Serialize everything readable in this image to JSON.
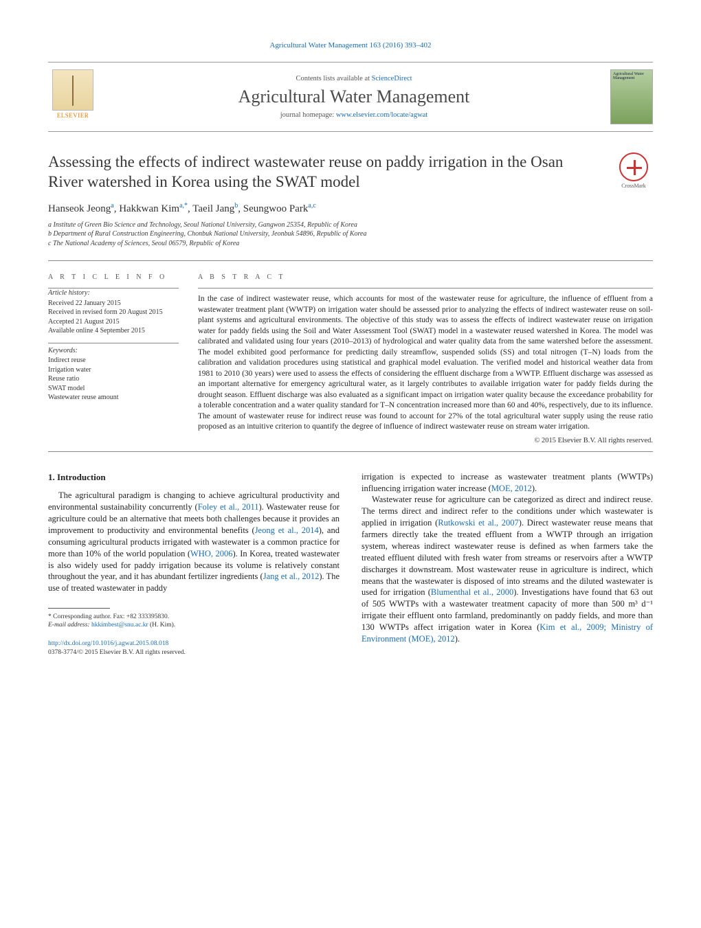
{
  "header_link": "Agricultural Water Management 163 (2016) 393–402",
  "masthead": {
    "contents_prefix": "Contents lists available at ",
    "contents_link": "ScienceDirect",
    "journal": "Agricultural Water Management",
    "homepage_prefix": "journal homepage: ",
    "homepage_link": "www.elsevier.com/locate/agwat",
    "elsevier_label": "ELSEVIER",
    "cover_label": "Agricultural Water Management"
  },
  "title": "Assessing the effects of indirect wastewater reuse on paddy irrigation in the Osan River watershed in Korea using the SWAT model",
  "crossmark": "CrossMark",
  "authors_html": "Hanseok Jeong|a|, Hakkwan Kim|a,*|, Taeil Jang|b|, Seungwoo Park|a,c",
  "authors": [
    {
      "name": "Hanseok Jeong",
      "sup": "a"
    },
    {
      "name": "Hakkwan Kim",
      "sup": "a,*"
    },
    {
      "name": "Taeil Jang",
      "sup": "b"
    },
    {
      "name": "Seungwoo Park",
      "sup": "a,c"
    }
  ],
  "affiliations": [
    "a Institute of Green Bio Science and Technology, Seoul National University, Gangwon 25354, Republic of Korea",
    "b Department of Rural Construction Engineering, Chonbuk National University, Jeonbuk 54896, Republic of Korea",
    "c The National Academy of Sciences, Seoul 06579, Republic of Korea"
  ],
  "article_info": {
    "heading": "A R T I C L E  I N F O",
    "history_head": "Article history:",
    "history": [
      "Received 22 January 2015",
      "Received in revised form 20 August 2015",
      "Accepted 21 August 2015",
      "Available online 4 September 2015"
    ],
    "keywords_head": "Keywords:",
    "keywords": [
      "Indirect reuse",
      "Irrigation water",
      "Reuse ratio",
      "SWAT model",
      "Wastewater reuse amount"
    ]
  },
  "abstract": {
    "heading": "A B S T R A C T",
    "text": "In the case of indirect wastewater reuse, which accounts for most of the wastewater reuse for agriculture, the influence of effluent from a wastewater treatment plant (WWTP) on irrigation water should be assessed prior to analyzing the effects of indirect wastewater reuse on soil-plant systems and agricultural environments. The objective of this study was to assess the effects of indirect wastewater reuse on irrigation water for paddy fields using the Soil and Water Assessment Tool (SWAT) model in a wastewater reused watershed in Korea. The model was calibrated and validated using four years (2010–2013) of hydrological and water quality data from the same watershed before the assessment. The model exhibited good performance for predicting daily streamflow, suspended solids (SS) and total nitrogen (T–N) loads from the calibration and validation procedures using statistical and graphical model evaluation. The verified model and historical weather data from 1981 to 2010 (30 years) were used to assess the effects of considering the effluent discharge from a WWTP. Effluent discharge was assessed as an important alternative for emergency agricultural water, as it largely contributes to available irrigation water for paddy fields during the drought season. Effluent discharge was also evaluated as a significant impact on irrigation water quality because the exceedance probability for a tolerable concentration and a water quality standard for T–N concentration increased more than 60 and 40%, respectively, due to its influence. The amount of wastewater reuse for indirect reuse was found to account for 27% of the total agricultural water supply using the reuse ratio proposed as an intuitive criterion to quantify the degree of influence of indirect wastewater reuse on stream water irrigation.",
    "copyright": "© 2015 Elsevier B.V. All rights reserved."
  },
  "body": {
    "intro_heading": "1.  Introduction",
    "col1_p1a": "The agricultural paradigm is changing to achieve agricultural productivity and environmental sustainability concurrently (",
    "col1_l1": "Foley et al., 2011",
    "col1_p1b": "). Wastewater reuse for agriculture could be an alternative that meets both challenges because it provides an improvement to productivity and environmental benefits (",
    "col1_l2": "Jeong et al., 2014",
    "col1_p1c": "), and consuming agricultural products irrigated with wastewater is a common practice for more than 10% of the world population (",
    "col1_l3": "WHO, 2006",
    "col1_p1d": "). In Korea, treated wastewater is also widely used for paddy irrigation because its volume is relatively constant throughout the year, and it has abundant fertilizer ingredients (",
    "col1_l4": "Jang et al., 2012",
    "col1_p1e": "). The use of treated wastewater in paddy",
    "col2_p1a": "irrigation is expected to increase as wastewater treatment plants (WWTPs) influencing irrigation water increase (",
    "col2_l1": "MOE, 2012",
    "col2_p1b": ").",
    "col2_p2a": "Wastewater reuse for agriculture can be categorized as direct and indirect reuse. The terms direct and indirect refer to the conditions under which wastewater is applied in irrigation (",
    "col2_l2": "Rutkowski et al., 2007",
    "col2_p2b": "). Direct wastewater reuse means that farmers directly take the treated effluent from a WWTP through an irrigation system, whereas indirect wastewater reuse is defined as when farmers take the treated effluent diluted with fresh water from streams or reservoirs after a WWTP discharges it downstream. Most wastewater reuse in agriculture is indirect, which means that the wastewater is disposed of into streams and the diluted wastewater is used for irrigation (",
    "col2_l3": "Blumenthal et al., 2000",
    "col2_p2c": "). Investigations have found that 63 out of 505 WWTPs with a wastewater treatment capacity of more than 500 m³ d⁻¹ irrigate their effluent onto farmland, predominantly on paddy fields, and more than 130 WWTPs affect irrigation water in Korea (",
    "col2_l4": "Kim et al., 2009; Ministry of Environment (MOE), 2012",
    "col2_p2d": ")."
  },
  "footnote": {
    "corr": "* Corresponding author. Fax: +82 333395830.",
    "email_label": "E-mail address: ",
    "email": "hkkimbest@snu.ac.kr",
    "email_suffix": " (H. Kim)."
  },
  "doi": {
    "url": "http://dx.doi.org/10.1016/j.agwat.2015.08.018",
    "issn": "0378-3774/© 2015 Elsevier B.V. All rights reserved."
  },
  "colors": {
    "link": "#1a6bb0",
    "text": "#1a1a1a",
    "heading": "#363636",
    "rule": "#888888"
  }
}
